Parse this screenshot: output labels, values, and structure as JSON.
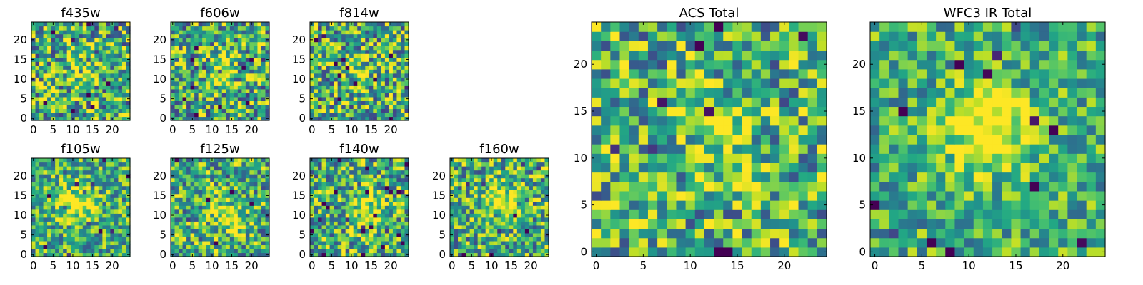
{
  "figure": {
    "background": "#ffffff"
  },
  "chart_data": [
    {
      "type": "heatmap",
      "title": "f435w",
      "grid_size": 25,
      "xlim": [
        -0.5,
        24.5
      ],
      "ylim": [
        -0.5,
        24.5
      ],
      "xticks": [
        0,
        5,
        10,
        15,
        20
      ],
      "yticks": [
        0,
        5,
        10,
        15,
        20
      ],
      "colormap": "viridis",
      "seed": 11,
      "noise": 0.45,
      "peak": 0.15,
      "peak_center": [
        12,
        12
      ]
    },
    {
      "type": "heatmap",
      "title": "f606w",
      "grid_size": 25,
      "xlim": [
        -0.5,
        24.5
      ],
      "ylim": [
        -0.5,
        24.5
      ],
      "xticks": [
        0,
        5,
        10,
        15,
        20
      ],
      "yticks": [
        0,
        5,
        10,
        15,
        20
      ],
      "colormap": "viridis",
      "seed": 23,
      "noise": 0.45,
      "peak": 0.25,
      "peak_center": [
        12,
        12
      ]
    },
    {
      "type": "heatmap",
      "title": "f814w",
      "grid_size": 25,
      "xlim": [
        -0.5,
        24.5
      ],
      "ylim": [
        -0.5,
        24.5
      ],
      "xticks": [
        0,
        5,
        10,
        15,
        20
      ],
      "yticks": [
        0,
        5,
        10,
        15,
        20
      ],
      "colormap": "viridis",
      "seed": 37,
      "noise": 0.45,
      "peak": 0.2,
      "peak_center": [
        12,
        12
      ]
    },
    {
      "type": "heatmap",
      "title": "f105w",
      "grid_size": 25,
      "xlim": [
        -0.5,
        24.5
      ],
      "ylim": [
        -0.5,
        24.5
      ],
      "xticks": [
        0,
        5,
        10,
        15,
        20
      ],
      "yticks": [
        0,
        5,
        10,
        15,
        20
      ],
      "colormap": "viridis",
      "seed": 41,
      "noise": 0.35,
      "peak": 0.45,
      "peak_center": [
        11,
        13
      ]
    },
    {
      "type": "heatmap",
      "title": "f125w",
      "grid_size": 25,
      "xlim": [
        -0.5,
        24.5
      ],
      "ylim": [
        -0.5,
        24.5
      ],
      "xticks": [
        0,
        5,
        10,
        15,
        20
      ],
      "yticks": [
        0,
        5,
        10,
        15,
        20
      ],
      "colormap": "viridis",
      "seed": 53,
      "noise": 0.4,
      "peak": 0.4,
      "peak_center": [
        14,
        10
      ]
    },
    {
      "type": "heatmap",
      "title": "f140w",
      "grid_size": 25,
      "xlim": [
        -0.5,
        24.5
      ],
      "ylim": [
        -0.5,
        24.5
      ],
      "xticks": [
        0,
        5,
        10,
        15,
        20
      ],
      "yticks": [
        0,
        5,
        10,
        15,
        20
      ],
      "colormap": "viridis",
      "seed": 67,
      "noise": 0.4,
      "peak": 0.4,
      "peak_center": [
        14,
        11
      ]
    },
    {
      "type": "heatmap",
      "title": "f160w",
      "grid_size": 25,
      "xlim": [
        -0.5,
        24.5
      ],
      "ylim": [
        -0.5,
        24.5
      ],
      "xticks": [
        0,
        5,
        10,
        15,
        20
      ],
      "yticks": [
        0,
        5,
        10,
        15,
        20
      ],
      "colormap": "viridis",
      "seed": 79,
      "noise": 0.4,
      "peak": 0.45,
      "peak_center": [
        12,
        14
      ]
    },
    {
      "type": "heatmap",
      "title": "ACS Total",
      "grid_size": 25,
      "xlim": [
        -0.5,
        24.5
      ],
      "ylim": [
        -0.5,
        24.5
      ],
      "xticks": [
        0,
        5,
        10,
        15,
        20
      ],
      "yticks": [
        0,
        5,
        10,
        15,
        20
      ],
      "colormap": "viridis",
      "seed": 97,
      "noise": 0.4,
      "peak": 0.25,
      "peak_center": [
        13,
        12
      ]
    },
    {
      "type": "heatmap",
      "title": "WFC3 IR Total",
      "grid_size": 25,
      "xlim": [
        -0.5,
        24.5
      ],
      "ylim": [
        -0.5,
        24.5
      ],
      "xticks": [
        0,
        5,
        10,
        15,
        20
      ],
      "yticks": [
        0,
        5,
        10,
        15,
        20
      ],
      "colormap": "viridis",
      "seed": 113,
      "noise": 0.3,
      "peak": 0.55,
      "peak_center": [
        12,
        13
      ]
    }
  ]
}
